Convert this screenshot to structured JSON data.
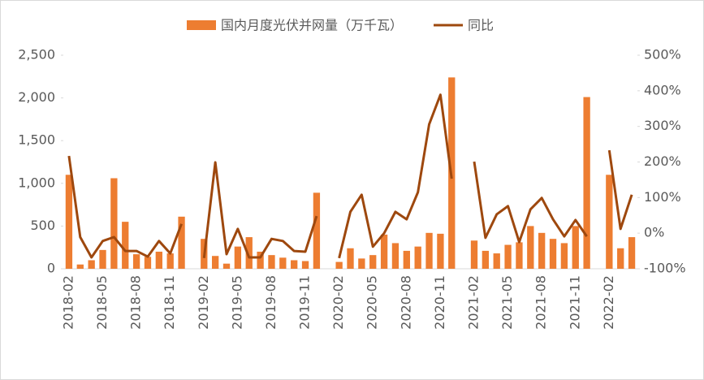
{
  "chart_data": {
    "type": "bar_line",
    "categories": [
      "2018-02",
      null,
      null,
      "2018-05",
      null,
      null,
      "2018-08",
      null,
      null,
      "2018-11",
      null,
      null,
      "2019-02",
      null,
      null,
      "2019-05",
      null,
      null,
      "2019-08",
      null,
      null,
      "2019-11",
      null,
      null,
      "2020-02",
      null,
      null,
      "2020-05",
      null,
      null,
      "2020-08",
      null,
      null,
      "2020-11",
      null,
      null,
      "2021-02",
      null,
      null,
      "2021-05",
      null,
      null,
      "2021-08",
      null,
      null,
      "2021-11",
      null,
      null,
      "2022-02",
      null,
      null
    ],
    "series": [
      {
        "name": "国内月度光伏并网量（万千瓦）",
        "color": "#ed7d31",
        "type": "bar",
        "values": [
          1100,
          50,
          100,
          220,
          1060,
          550,
          170,
          140,
          200,
          180,
          610,
          null,
          350,
          150,
          60,
          260,
          370,
          200,
          160,
          130,
          100,
          90,
          890,
          null,
          80,
          240,
          120,
          160,
          400,
          300,
          210,
          260,
          420,
          410,
          2240,
          null,
          330,
          210,
          180,
          280,
          310,
          500,
          420,
          350,
          300,
          500,
          2010,
          null,
          1100,
          240,
          370
        ]
      },
      {
        "name": "同比",
        "color": "#9e480e",
        "type": "line",
        "axis": "y2",
        "values": [
          217,
          -11,
          -68,
          -22,
          -11,
          -50,
          -50,
          -66,
          -22,
          -57,
          26,
          null,
          -70,
          199,
          -59,
          12,
          -68,
          -68,
          -16,
          -22,
          -50,
          -52,
          48,
          null,
          -70,
          60,
          108,
          -38,
          0,
          60,
          39,
          115,
          306,
          389,
          153,
          null,
          201,
          -13,
          53,
          76,
          -25,
          67,
          99,
          39,
          -9,
          37,
          -9,
          null,
          233,
          12,
          108
        ]
      }
    ],
    "ylim": [
      0,
      2500
    ],
    "yticks": [
      0,
      500,
      {
        "value": 1000,
        "label": "1,000"
      },
      {
        "value": 1500,
        "label": "1,500"
      },
      {
        "value": 2000,
        "label": "2,000"
      },
      {
        "value": 2500,
        "label": "2,500"
      }
    ],
    "y2lim": [
      -100,
      500
    ],
    "y2ticks": [
      {
        "value": -100,
        "label": "-100%"
      },
      {
        "value": 0,
        "label": "0%"
      },
      {
        "value": 100,
        "label": "100%"
      },
      {
        "value": 200,
        "label": "200%"
      },
      {
        "value": 300,
        "label": "300%"
      },
      {
        "value": 400,
        "label": "400%"
      },
      {
        "value": 500,
        "label": "500%"
      }
    ],
    "legend": "top"
  }
}
